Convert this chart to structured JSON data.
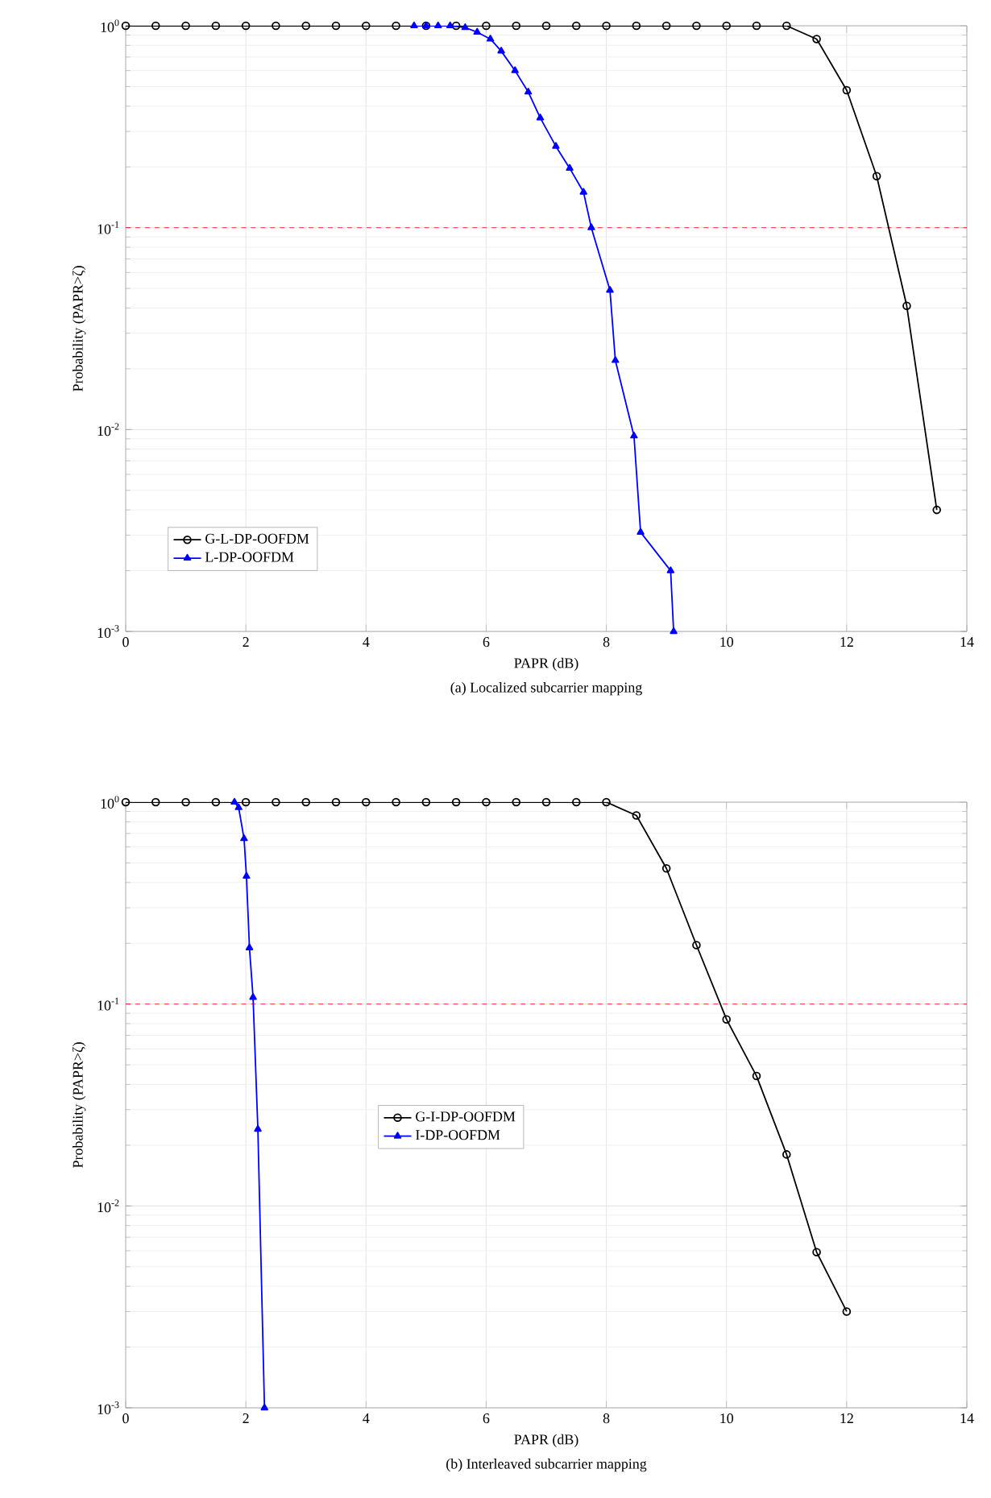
{
  "chart_data": [
    {
      "type": "line",
      "xlabel": "PAPR (dB)",
      "ylabel": "Probability (PAPR>ζ)",
      "log": "y",
      "grid": true,
      "legend": "bottom left",
      "xlim": [
        0,
        14
      ],
      "xticks": [
        0,
        2,
        4,
        6,
        8,
        10,
        12,
        14
      ],
      "ylim": [
        0.001,
        1
      ],
      "yticks": [
        {
          "value": 0.001,
          "label": "10$^{-3}$"
        },
        {
          "value": 0.01,
          "label": "10$^{-2}$"
        },
        {
          "value": 0.1,
          "label": "10$^{-1}$"
        },
        {
          "value": 1,
          "label": "10$^{0}$"
        }
      ],
      "ref_lines": [
        {
          "axis": "y",
          "value": 0.1,
          "color": "#ff0000",
          "line_style": "dashed"
        }
      ],
      "annotations": [
        "(a)  Localized subcarrier mapping"
      ],
      "series": [
        {
          "name": "G-L-DP-OOFDM",
          "color": "#000000",
          "marker": "circle",
          "x": [
            0,
            0.5,
            1,
            1.5,
            2,
            2.5,
            3,
            3.5,
            4,
            4.5,
            5,
            5.5,
            6,
            6.5,
            7,
            7.5,
            8,
            8.5,
            9,
            9.5,
            10,
            10.5,
            11,
            11.5,
            12,
            12.5,
            13,
            13.5
          ],
          "values": [
            1,
            1,
            1,
            1,
            1,
            1,
            1,
            1,
            1,
            1,
            1,
            1,
            1,
            1,
            1,
            1,
            1,
            1,
            1,
            1,
            1,
            1,
            1,
            0.86,
            0.48,
            0.18,
            0.041,
            0.004
          ]
        },
        {
          "name": "L-DP-OOFDM",
          "color": "#0000ff",
          "marker": "triangle",
          "x": [
            4.8,
            5.0,
            5.2,
            5.4,
            5.65,
            5.85,
            6.07,
            6.25,
            6.48,
            6.7,
            6.9,
            7.16,
            7.39,
            7.62,
            7.75,
            8.06,
            8.15,
            8.46,
            8.57,
            9.07,
            9.12
          ],
          "values": [
            1,
            1,
            1,
            1,
            0.98,
            0.93,
            0.86,
            0.75,
            0.6,
            0.47,
            0.35,
            0.253,
            0.197,
            0.15,
            0.1,
            0.049,
            0.022,
            0.0093,
            0.0031,
            0.002,
            0.001
          ]
        }
      ]
    },
    {
      "type": "line",
      "xlabel": "PAPR (dB)",
      "ylabel": "Probability (PAPR>ζ)",
      "log": "y",
      "grid": true,
      "legend": "center",
      "xlim": [
        0,
        14
      ],
      "xticks": [
        0,
        2,
        4,
        6,
        8,
        10,
        12,
        14
      ],
      "ylim": [
        0.001,
        1
      ],
      "yticks": [
        {
          "value": 0.001,
          "label": "10$^{-3}$"
        },
        {
          "value": 0.01,
          "label": "10$^{-2}$"
        },
        {
          "value": 0.1,
          "label": "10$^{-1}$"
        },
        {
          "value": 1,
          "label": "10$^{0}$"
        }
      ],
      "ref_lines": [
        {
          "axis": "y",
          "value": 0.1,
          "color": "#ff0000",
          "line_style": "dashed"
        }
      ],
      "annotations": [
        "(b)  Interleaved subcarrier mapping"
      ],
      "series": [
        {
          "name": "G-I-DP-OOFDM",
          "color": "#000000",
          "marker": "circle",
          "x": [
            0,
            0.5,
            1,
            1.5,
            2,
            2.5,
            3,
            3.5,
            4,
            4.5,
            5,
            5.5,
            6,
            6.5,
            7,
            7.5,
            8,
            8.5,
            9,
            9.5,
            10,
            10.5,
            11,
            11.5,
            12
          ],
          "values": [
            1,
            1,
            1,
            1,
            1,
            1,
            1,
            1,
            1,
            1,
            1,
            1,
            1,
            1,
            1,
            1,
            1,
            0.86,
            0.47,
            0.196,
            0.084,
            0.044,
            0.018,
            0.0059,
            0.003
          ]
        },
        {
          "name": "I-DP-OOFDM",
          "color": "#0000ff",
          "marker": "triangle",
          "x": [
            1.81,
            1.88,
            1.97,
            2.01,
            2.06,
            2.12,
            2.2,
            2.31
          ],
          "values": [
            1,
            0.94,
            0.66,
            0.43,
            0.19,
            0.108,
            0.024,
            0.001
          ]
        }
      ]
    }
  ]
}
